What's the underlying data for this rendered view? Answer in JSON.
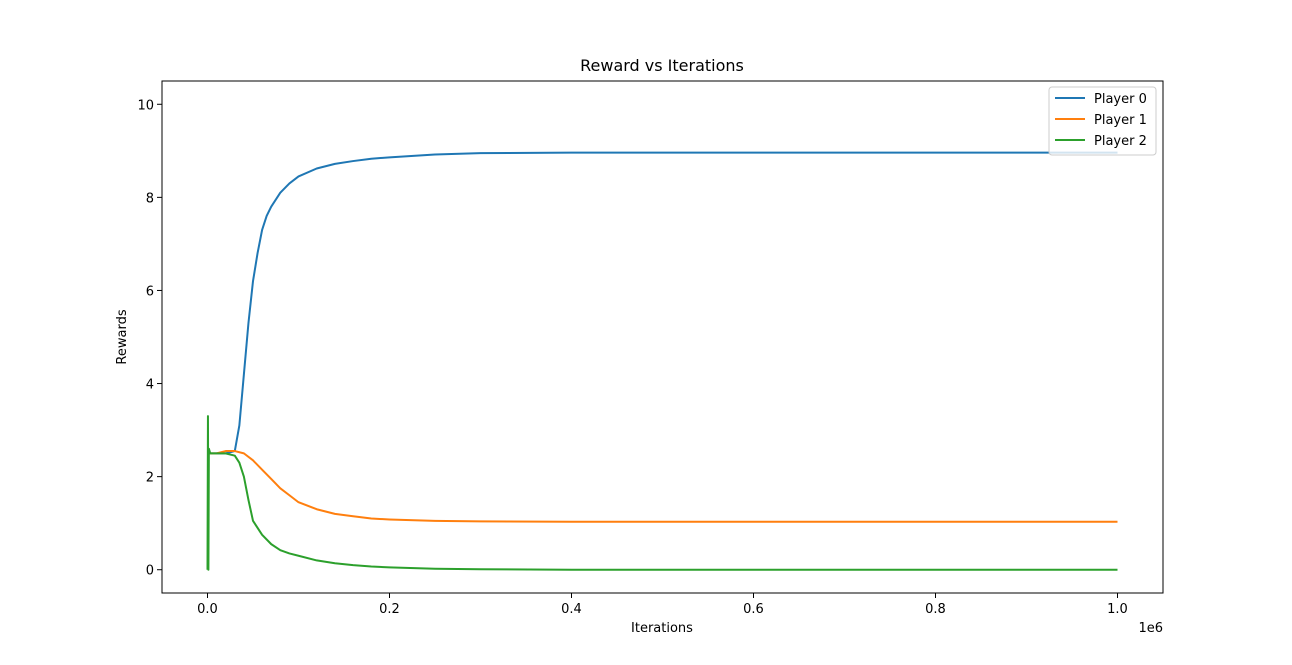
{
  "chart_data": {
    "type": "line",
    "title": "Reward vs Iterations",
    "xlabel": "Iterations",
    "ylabel": "Rewards",
    "x_offset_label": "1e6",
    "xlim": [
      -0.05,
      1.05
    ],
    "ylim": [
      -0.5,
      10.5
    ],
    "x_ticks": [
      0.0,
      0.2,
      0.4,
      0.6,
      0.8,
      1.0
    ],
    "x_tick_labels": [
      "0.0",
      "0.2",
      "0.4",
      "0.6",
      "0.8",
      "1.0"
    ],
    "y_ticks": [
      0,
      2,
      4,
      6,
      8,
      10
    ],
    "y_tick_labels": [
      "0",
      "2",
      "4",
      "6",
      "8",
      "10"
    ],
    "grid": false,
    "legend_position": "top-right",
    "series": [
      {
        "name": "Player 0",
        "color": "#1f77b4",
        "x": [
          0.0,
          0.01,
          0.02,
          0.03,
          0.035,
          0.04,
          0.045,
          0.05,
          0.055,
          0.06,
          0.065,
          0.07,
          0.08,
          0.09,
          0.1,
          0.12,
          0.14,
          0.16,
          0.18,
          0.2,
          0.25,
          0.3,
          0.4,
          0.5,
          0.6,
          0.7,
          0.8,
          0.9,
          1.0
        ],
        "values": [
          2.5,
          2.5,
          2.5,
          2.55,
          3.1,
          4.2,
          5.3,
          6.2,
          6.8,
          7.3,
          7.6,
          7.8,
          8.1,
          8.3,
          8.45,
          8.62,
          8.72,
          8.78,
          8.83,
          8.86,
          8.92,
          8.95,
          8.96,
          8.96,
          8.96,
          8.96,
          8.96,
          8.96,
          8.96
        ]
      },
      {
        "name": "Player 1",
        "color": "#ff7f0e",
        "x": [
          0.0,
          0.01,
          0.02,
          0.03,
          0.04,
          0.05,
          0.06,
          0.07,
          0.08,
          0.09,
          0.1,
          0.12,
          0.14,
          0.16,
          0.18,
          0.2,
          0.25,
          0.3,
          0.4,
          0.5,
          0.6,
          0.7,
          0.8,
          0.9,
          1.0
        ],
        "values": [
          2.5,
          2.5,
          2.55,
          2.55,
          2.5,
          2.35,
          2.15,
          1.95,
          1.75,
          1.6,
          1.45,
          1.3,
          1.2,
          1.15,
          1.1,
          1.08,
          1.05,
          1.04,
          1.03,
          1.03,
          1.03,
          1.03,
          1.03,
          1.03,
          1.03
        ]
      },
      {
        "name": "Player 2",
        "color": "#2ca02c",
        "x": [
          0.0,
          0.0005,
          0.001,
          0.0015,
          0.003,
          0.01,
          0.02,
          0.03,
          0.035,
          0.04,
          0.045,
          0.05,
          0.06,
          0.07,
          0.08,
          0.09,
          0.1,
          0.12,
          0.14,
          0.16,
          0.18,
          0.2,
          0.25,
          0.3,
          0.4,
          0.5,
          0.6,
          0.7,
          0.8,
          0.9,
          1.0
        ],
        "values": [
          0.0,
          3.3,
          0.0,
          2.6,
          2.5,
          2.5,
          2.5,
          2.45,
          2.3,
          2.0,
          1.5,
          1.05,
          0.75,
          0.55,
          0.42,
          0.35,
          0.3,
          0.2,
          0.14,
          0.1,
          0.07,
          0.05,
          0.02,
          0.01,
          0.0,
          0.0,
          0.0,
          0.0,
          0.0,
          0.0,
          0.0
        ]
      }
    ]
  }
}
